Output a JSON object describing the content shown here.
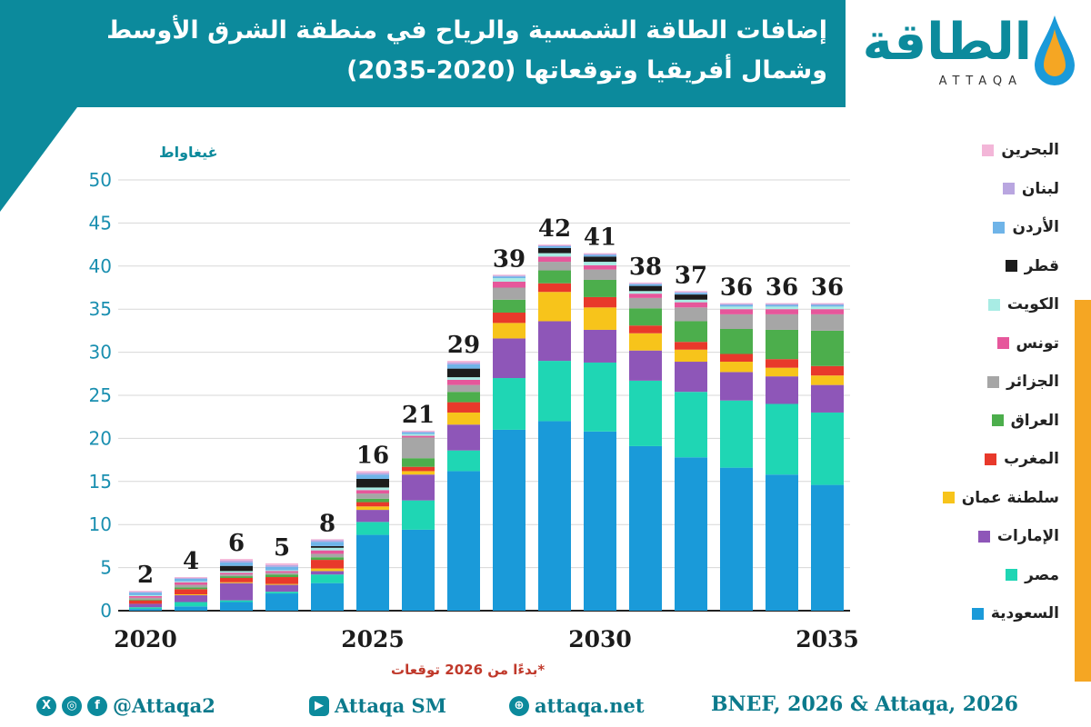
{
  "header": {
    "title_line1": "إضافات الطاقة الشمسية والرياح في منطقة الشرق الأوسط",
    "title_line2": "وشمال أفريقيا وتوقعاتها (2020-2035)"
  },
  "logo": {
    "arabic": "الطاقة",
    "latin": "ATTAQA"
  },
  "note": "*بدءًا من 2026 توقعات",
  "footer": {
    "social_handle": "@Attaqa2",
    "youtube": "Attaqa SM",
    "website": "attaqa.net",
    "source": "BNEF, 2026 & Attaqa, 2026"
  },
  "colors": {
    "teal": "#0c8a9c",
    "orange": "#f5a623"
  },
  "chart_data": {
    "type": "bar",
    "stacked": true,
    "ylabel": "غيغاواط",
    "ylim": [
      0,
      50
    ],
    "yticks": [
      0,
      5,
      10,
      15,
      20,
      25,
      30,
      35,
      40,
      45,
      50
    ],
    "x_tick_labels": [
      {
        "year": 2020,
        "label": "2020"
      },
      {
        "year": 2025,
        "label": "2025"
      },
      {
        "year": 2030,
        "label": "2030"
      },
      {
        "year": 2035,
        "label": "2035"
      }
    ],
    "grid": true,
    "legend_position": "right",
    "categories": [
      2020,
      2021,
      2022,
      2023,
      2024,
      2025,
      2026,
      2027,
      2028,
      2029,
      2030,
      2031,
      2032,
      2033,
      2034,
      2035
    ],
    "totals": [
      2,
      4,
      6,
      5,
      8,
      16,
      21,
      29,
      39,
      42,
      41,
      38,
      37,
      36,
      36,
      36
    ],
    "series": [
      {
        "name": "السعودية",
        "color": "#1a9ad9",
        "values": [
          0.2,
          0.5,
          1.0,
          2.0,
          3.2,
          8.8,
          9.4,
          16.2,
          21.0,
          22.0,
          20.8,
          19.1,
          17.8,
          16.6,
          15.8,
          14.6
        ]
      },
      {
        "name": "مصر",
        "color": "#1fd6b4",
        "values": [
          0.2,
          0.5,
          0.2,
          0.2,
          1.0,
          1.5,
          3.4,
          2.4,
          6.0,
          7.0,
          8.0,
          7.6,
          7.6,
          7.8,
          8.2,
          8.4
        ]
      },
      {
        "name": "الإمارات",
        "color": "#8e56b8",
        "values": [
          0.4,
          0.8,
          2.0,
          0.8,
          0.4,
          1.4,
          3.0,
          3.0,
          4.6,
          4.6,
          3.8,
          3.5,
          3.5,
          3.3,
          3.2,
          3.2
        ]
      },
      {
        "name": "سلطنة عمان",
        "color": "#f7c41b",
        "values": [
          0.0,
          0.1,
          0.1,
          0.1,
          0.3,
          0.4,
          0.4,
          1.4,
          1.8,
          3.4,
          2.6,
          2.0,
          1.4,
          1.2,
          1.0,
          1.1
        ]
      },
      {
        "name": "المغرب",
        "color": "#e8392b",
        "values": [
          0.4,
          0.6,
          0.5,
          0.8,
          1.0,
          0.5,
          0.5,
          1.2,
          1.2,
          1.0,
          1.2,
          0.9,
          0.9,
          0.9,
          1.0,
          1.1
        ]
      },
      {
        "name": "العراق",
        "color": "#4cae4c",
        "values": [
          0.1,
          0.2,
          0.2,
          0.3,
          0.3,
          0.4,
          1.0,
          1.2,
          1.5,
          1.5,
          2.0,
          2.0,
          2.4,
          2.9,
          3.4,
          4.1
        ]
      },
      {
        "name": "الجزائر",
        "color": "#a6a6a6",
        "values": [
          0.2,
          0.3,
          0.2,
          0.2,
          0.4,
          0.6,
          2.4,
          0.8,
          1.4,
          1.0,
          1.2,
          1.2,
          1.6,
          1.7,
          1.8,
          1.9
        ]
      },
      {
        "name": "تونس",
        "color": "#e6579b",
        "values": [
          0.2,
          0.3,
          0.2,
          0.2,
          0.4,
          0.4,
          0.2,
          0.6,
          0.7,
          0.6,
          0.5,
          0.5,
          0.6,
          0.6,
          0.6,
          0.6
        ]
      },
      {
        "name": "الكويت",
        "color": "#a8ece4",
        "values": [
          0.1,
          0.1,
          0.2,
          0.1,
          0.3,
          0.3,
          0.2,
          0.3,
          0.4,
          0.4,
          0.4,
          0.3,
          0.3,
          0.3,
          0.3,
          0.3
        ]
      },
      {
        "name": "قطر",
        "color": "#1c1c1c",
        "values": [
          0.0,
          0.0,
          0.6,
          0.0,
          0.2,
          1.0,
          0.0,
          1.0,
          0.0,
          0.6,
          0.6,
          0.6,
          0.6,
          0.0,
          0.0,
          0.0
        ]
      },
      {
        "name": "الأردن",
        "color": "#6fb4e8",
        "values": [
          0.3,
          0.3,
          0.4,
          0.4,
          0.5,
          0.5,
          0.2,
          0.5,
          0.2,
          0.2,
          0.2,
          0.2,
          0.2,
          0.2,
          0.2,
          0.2
        ]
      },
      {
        "name": "لبنان",
        "color": "#b9a6e0",
        "values": [
          0.1,
          0.1,
          0.2,
          0.2,
          0.2,
          0.2,
          0.1,
          0.2,
          0.1,
          0.1,
          0.1,
          0.1,
          0.1,
          0.1,
          0.1,
          0.1
        ]
      },
      {
        "name": "البحرين",
        "color": "#f3b6d8",
        "values": [
          0.1,
          0.1,
          0.2,
          0.2,
          0.1,
          0.2,
          0.1,
          0.2,
          0.1,
          0.1,
          0.1,
          0.1,
          0.1,
          0.1,
          0.1,
          0.1
        ]
      }
    ]
  }
}
